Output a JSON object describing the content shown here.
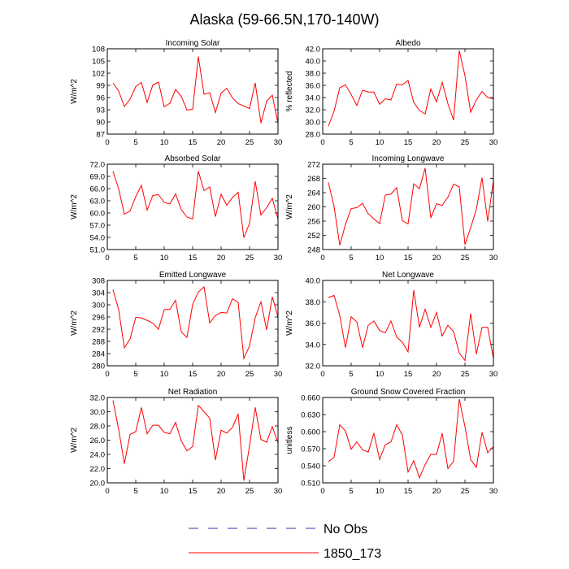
{
  "figure": {
    "title": "Alaska (59-66.5N,170-140W)",
    "legend": {
      "placement": "bottom-center",
      "entries": [
        {
          "label": "No Obs",
          "color": "#3333aa",
          "dash": "dashed"
        },
        {
          "label": "1850_173",
          "color": "#ff0000",
          "dash": "solid"
        }
      ]
    }
  },
  "chart_data": [
    {
      "type": "line",
      "title": "Incoming Solar",
      "ylabel": "W/m^2",
      "xlim": [
        0,
        30
      ],
      "ylim": [
        87,
        108
      ],
      "xticks": [
        "0",
        "5",
        "10",
        "15",
        "20",
        "25",
        "30"
      ],
      "yticks": [
        "87",
        "90",
        "93",
        "96",
        "99",
        "102",
        "105",
        "108"
      ],
      "series": [
        {
          "color": "#ff0000",
          "x": [
            1,
            2,
            3,
            4,
            5,
            6,
            7,
            8,
            9,
            10,
            11,
            12,
            13,
            14,
            15,
            16,
            17,
            18,
            19,
            20,
            21,
            22,
            23,
            24,
            25,
            26,
            27,
            28,
            29,
            30
          ],
          "y": [
            99.6,
            97.6,
            93.8,
            95.6,
            98.7,
            99.7,
            94.8,
            99.1,
            99.8,
            93.7,
            94.6,
            98.0,
            96.3,
            92.9,
            93.1,
            106.1,
            96.8,
            97.2,
            92.3,
            97.1,
            98.3,
            95.9,
            94.5,
            93.9,
            93.3,
            99.6,
            89.7,
            95.1,
            96.6,
            89.6
          ]
        }
      ]
    },
    {
      "type": "line",
      "title": "Albedo",
      "ylabel": "% reflected",
      "xlim": [
        0,
        30
      ],
      "ylim": [
        28,
        42
      ],
      "xticks": [
        "0",
        "5",
        "10",
        "15",
        "20",
        "25",
        "30"
      ],
      "yticks": [
        "28.0",
        "30.0",
        "32.0",
        "34.0",
        "36.0",
        "38.0",
        "40.0",
        "42.0"
      ],
      "series": [
        {
          "color": "#ff0000",
          "x": [
            1,
            2,
            3,
            4,
            5,
            6,
            7,
            8,
            9,
            10,
            11,
            12,
            13,
            14,
            15,
            16,
            17,
            18,
            19,
            20,
            21,
            22,
            23,
            24,
            25,
            26,
            27,
            28,
            29,
            30
          ],
          "y": [
            29.3,
            31.8,
            35.6,
            36.1,
            34.5,
            32.7,
            35.2,
            34.9,
            34.9,
            32.9,
            33.8,
            33.6,
            36.2,
            36.1,
            36.8,
            33.2,
            31.9,
            31.3,
            35.4,
            33.3,
            36.5,
            33.0,
            30.3,
            41.7,
            37.6,
            31.6,
            33.6,
            35.0,
            34.0,
            33.8
          ]
        }
      ]
    },
    {
      "type": "line",
      "title": "Absorbed Solar",
      "ylabel": "W/m^2",
      "xlim": [
        0,
        30
      ],
      "ylim": [
        51,
        72
      ],
      "xticks": [
        "0",
        "5",
        "10",
        "15",
        "20",
        "25",
        "30"
      ],
      "yticks": [
        "51.0",
        "54.0",
        "57.0",
        "60.0",
        "63.0",
        "66.0",
        "69.0",
        "72.0"
      ],
      "series": [
        {
          "color": "#ff0000",
          "x": [
            1,
            2,
            3,
            4,
            5,
            6,
            7,
            8,
            9,
            10,
            11,
            12,
            13,
            14,
            15,
            16,
            17,
            18,
            19,
            20,
            21,
            22,
            23,
            24,
            25,
            26,
            27,
            28,
            29,
            30
          ],
          "y": [
            70.3,
            65.9,
            59.7,
            60.5,
            64.0,
            66.8,
            60.7,
            64.3,
            64.5,
            62.6,
            62.2,
            64.7,
            60.8,
            59.0,
            58.5,
            70.3,
            65.5,
            66.4,
            59.1,
            64.6,
            61.9,
            63.8,
            65.1,
            53.9,
            57.5,
            67.8,
            59.5,
            61.3,
            63.6,
            58.5
          ]
        }
      ]
    },
    {
      "type": "line",
      "title": "Incoming Longwave",
      "ylabel": "W/m^2",
      "xlim": [
        0,
        30
      ],
      "ylim": [
        248,
        272
      ],
      "xticks": [
        "0",
        "5",
        "10",
        "15",
        "20",
        "25",
        "30"
      ],
      "yticks": [
        "248",
        "252",
        "256",
        "260",
        "264",
        "268",
        "272"
      ],
      "series": [
        {
          "color": "#ff0000",
          "x": [
            1,
            2,
            3,
            4,
            5,
            6,
            7,
            8,
            9,
            10,
            11,
            12,
            13,
            14,
            15,
            16,
            17,
            18,
            19,
            20,
            21,
            22,
            23,
            24,
            25,
            26,
            27,
            28,
            29,
            30
          ],
          "y": [
            266.9,
            260.1,
            249.2,
            255.1,
            259.5,
            259.8,
            261.0,
            258.1,
            256.6,
            255.3,
            263.3,
            263.6,
            265.4,
            256.1,
            255.2,
            266.5,
            265.1,
            270.9,
            256.9,
            260.9,
            260.4,
            262.7,
            266.4,
            265.6,
            249.4,
            254.1,
            259.3,
            268.2,
            255.9,
            267.4
          ]
        }
      ]
    },
    {
      "type": "line",
      "title": "Emitted Longwave",
      "ylabel": "W/m^2",
      "xlim": [
        0,
        30
      ],
      "ylim": [
        280,
        308
      ],
      "xticks": [
        "0",
        "5",
        "10",
        "15",
        "20",
        "25",
        "30"
      ],
      "yticks": [
        "280",
        "284",
        "288",
        "292",
        "296",
        "300",
        "304",
        "308"
      ],
      "series": [
        {
          "color": "#ff0000",
          "x": [
            1,
            2,
            3,
            4,
            5,
            6,
            7,
            8,
            9,
            10,
            11,
            12,
            13,
            14,
            15,
            16,
            17,
            18,
            19,
            20,
            21,
            22,
            23,
            24,
            25,
            26,
            27,
            28,
            29,
            30
          ],
          "y": [
            305.0,
            298.4,
            285.9,
            288.8,
            295.9,
            295.7,
            294.9,
            294.0,
            292.0,
            298.4,
            298.5,
            301.5,
            291.1,
            289.3,
            300.1,
            304.2,
            305.9,
            294.1,
            296.5,
            297.5,
            297.3,
            302.0,
            300.8,
            282.4,
            286.5,
            295.8,
            301.0,
            291.8,
            302.6,
            296.0
          ]
        }
      ]
    },
    {
      "type": "line",
      "title": "Net Longwave",
      "ylabel": "W/m^2",
      "xlim": [
        0,
        30
      ],
      "ylim": [
        32,
        40
      ],
      "xticks": [
        "0",
        "5",
        "10",
        "15",
        "20",
        "25",
        "30"
      ],
      "yticks": [
        "32.0",
        "34.0",
        "36.0",
        "38.0",
        "40.0"
      ],
      "series": [
        {
          "color": "#ff0000",
          "x": [
            1,
            2,
            3,
            4,
            5,
            6,
            7,
            8,
            9,
            10,
            11,
            12,
            13,
            14,
            15,
            16,
            17,
            18,
            19,
            20,
            21,
            22,
            23,
            24,
            25,
            26,
            27,
            28,
            29,
            30
          ],
          "y": [
            38.4,
            38.6,
            36.7,
            33.7,
            36.6,
            36.1,
            33.7,
            35.8,
            36.2,
            35.3,
            35.1,
            36.2,
            34.7,
            34.2,
            33.3,
            39.1,
            35.6,
            37.3,
            35.6,
            37.0,
            34.8,
            35.8,
            35.2,
            33.2,
            32.5,
            36.9,
            33.1,
            35.6,
            35.6,
            32.7
          ]
        }
      ]
    },
    {
      "type": "line",
      "title": "Net Radiation",
      "ylabel": "W/m^2",
      "xlim": [
        0,
        30
      ],
      "ylim": [
        20,
        32
      ],
      "xticks": [
        "0",
        "5",
        "10",
        "15",
        "20",
        "25",
        "30"
      ],
      "yticks": [
        "20.0",
        "22.0",
        "24.0",
        "26.0",
        "28.0",
        "30.0",
        "32.0"
      ],
      "series": [
        {
          "color": "#ff0000",
          "x": [
            1,
            2,
            3,
            4,
            5,
            6,
            7,
            8,
            9,
            10,
            11,
            12,
            13,
            14,
            15,
            16,
            17,
            18,
            19,
            20,
            21,
            22,
            23,
            24,
            25,
            26,
            27,
            28,
            29,
            30
          ],
          "y": [
            31.6,
            27.5,
            22.7,
            26.8,
            27.2,
            30.6,
            26.9,
            28.1,
            28.1,
            27.1,
            26.9,
            28.5,
            25.9,
            24.5,
            25.1,
            30.9,
            30.0,
            29.1,
            23.2,
            27.4,
            27.0,
            27.8,
            29.7,
            20.3,
            25.2,
            30.6,
            26.1,
            25.7,
            27.9,
            25.6
          ]
        }
      ]
    },
    {
      "type": "line",
      "title": "Ground Snow Covered Fraction",
      "ylabel": "unitless",
      "xlim": [
        0,
        30
      ],
      "ylim": [
        0.51,
        0.66
      ],
      "xticks": [
        "0",
        "5",
        "10",
        "15",
        "20",
        "25",
        "30"
      ],
      "yticks": [
        "0.510",
        "0.540",
        "0.570",
        "0.600",
        "0.630",
        "0.660"
      ],
      "series": [
        {
          "color": "#ff0000",
          "x": [
            1,
            2,
            3,
            4,
            5,
            6,
            7,
            8,
            9,
            10,
            11,
            12,
            13,
            14,
            15,
            16,
            17,
            18,
            19,
            20,
            21,
            22,
            23,
            24,
            25,
            26,
            27,
            28,
            29,
            30
          ],
          "y": [
            0.547,
            0.555,
            0.612,
            0.601,
            0.569,
            0.582,
            0.568,
            0.564,
            0.597,
            0.551,
            0.577,
            0.582,
            0.612,
            0.594,
            0.529,
            0.549,
            0.519,
            0.542,
            0.56,
            0.56,
            0.597,
            0.535,
            0.548,
            0.657,
            0.609,
            0.551,
            0.537,
            0.599,
            0.563,
            0.574
          ]
        }
      ]
    }
  ]
}
